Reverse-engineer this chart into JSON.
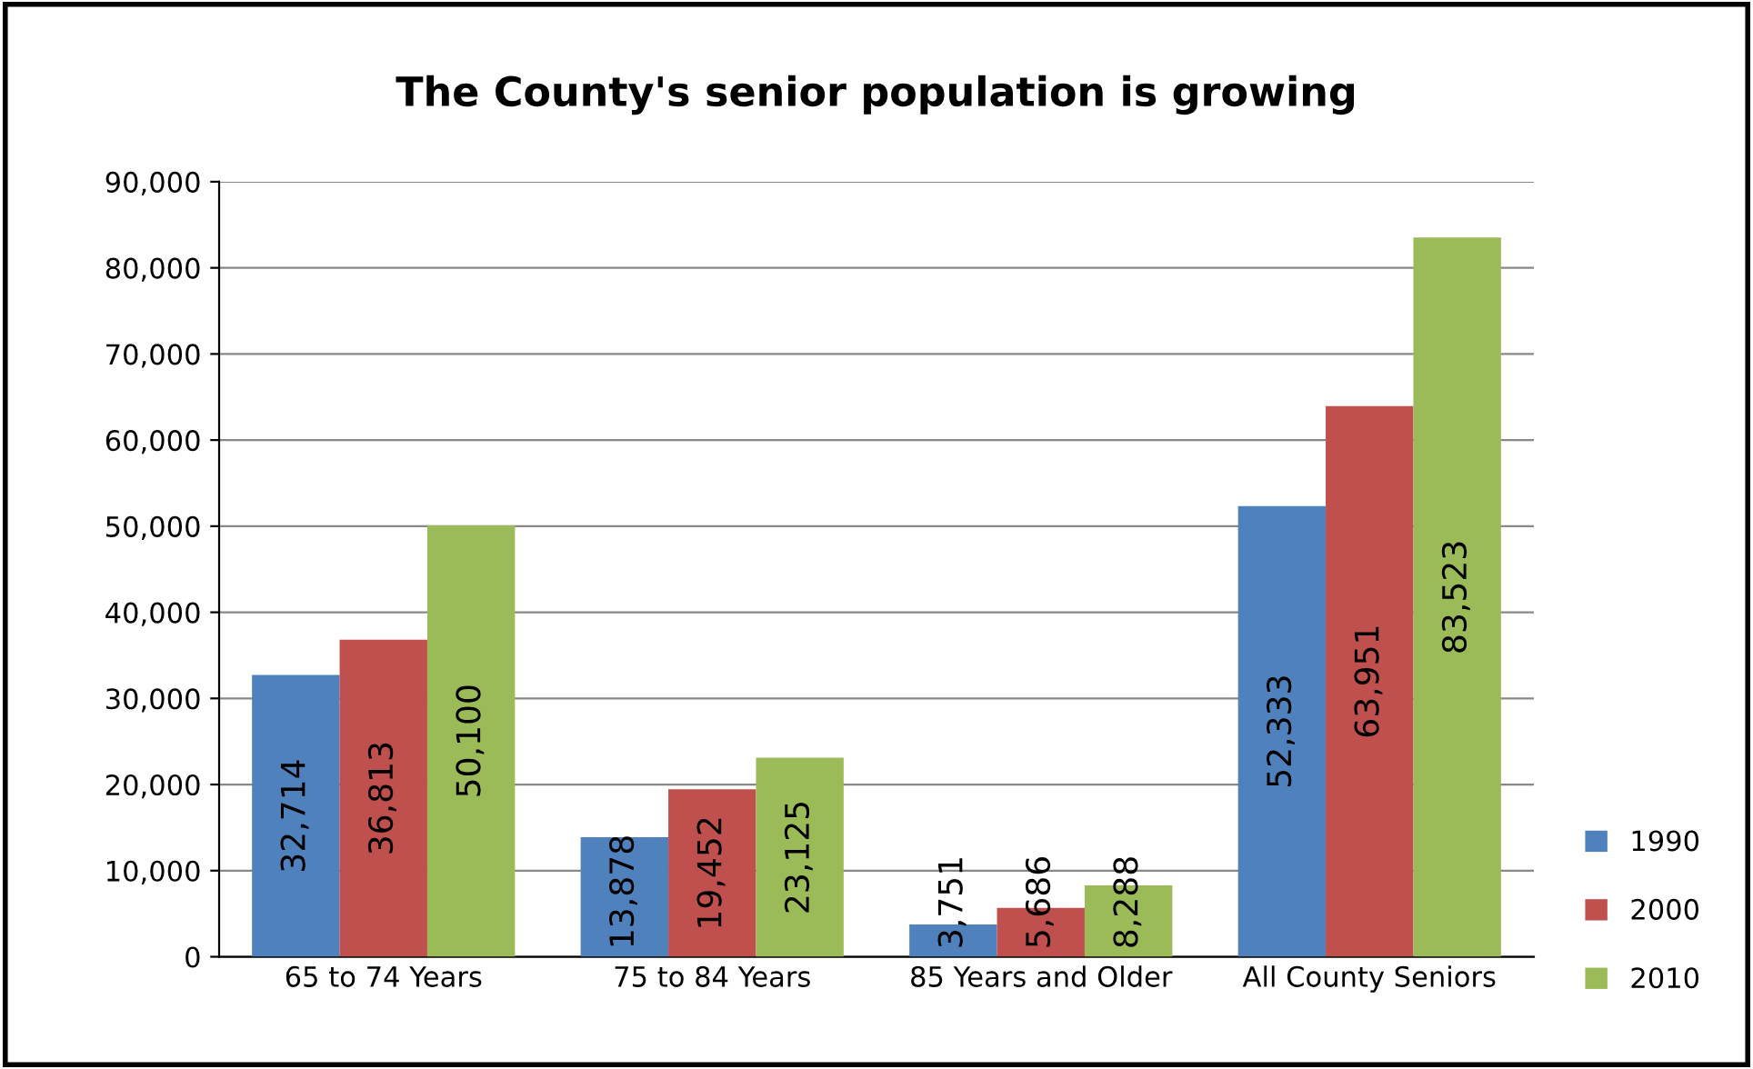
{
  "chart_data": {
    "type": "bar",
    "title": "The County's senior population is growing",
    "categories": [
      "65 to 74 Years",
      "75 to 84 Years",
      "85 Years and Older",
      "All County Seniors"
    ],
    "series": [
      {
        "name": "1990",
        "color": "#4f81bd",
        "values": [
          32714,
          13878,
          3751,
          52333
        ],
        "value_labels": [
          "32,714",
          "13,878",
          "3,751",
          "52,333"
        ]
      },
      {
        "name": "2000",
        "color": "#c0504d",
        "values": [
          36813,
          19452,
          5686,
          63951
        ],
        "value_labels": [
          "36,813",
          "19,452",
          "5,686",
          "63,951"
        ]
      },
      {
        "name": "2010",
        "color": "#9bbb59",
        "values": [
          50100,
          23125,
          8288,
          83523
        ],
        "value_labels": [
          "50,100",
          "23,125",
          "8,288",
          "83,523"
        ]
      }
    ],
    "ylim": [
      0,
      90000
    ],
    "yticks": [
      {
        "value": 0,
        "label": "0"
      },
      {
        "value": 10000,
        "label": "10,000"
      },
      {
        "value": 20000,
        "label": "20,000"
      },
      {
        "value": 30000,
        "label": "30,000"
      },
      {
        "value": 40000,
        "label": "40,000"
      },
      {
        "value": 50000,
        "label": "50,000"
      },
      {
        "value": 60000,
        "label": "60,000"
      },
      {
        "value": 70000,
        "label": "70,000"
      },
      {
        "value": 80000,
        "label": "80,000"
      },
      {
        "value": 90000,
        "label": "90,000"
      }
    ],
    "grid": "y",
    "legend": "bottom right"
  }
}
